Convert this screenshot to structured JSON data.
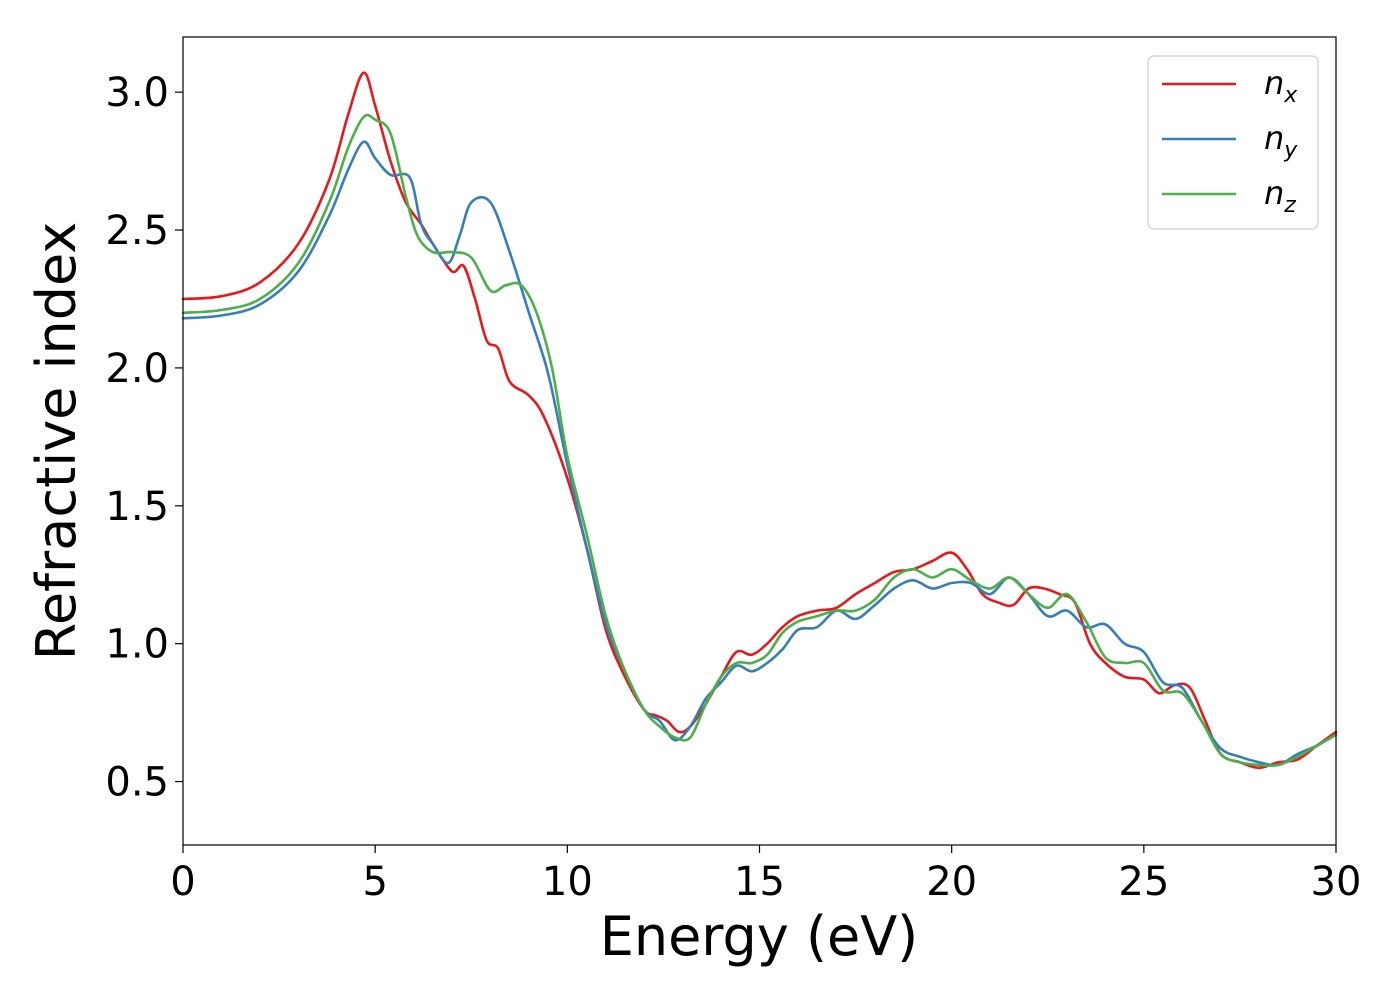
{
  "chart_data": {
    "type": "line",
    "title": "",
    "xlabel": "Energy (eV)",
    "ylabel": "Refractive index",
    "xlim": [
      0,
      30
    ],
    "ylim": [
      0.27,
      3.2
    ],
    "xticks": [
      0,
      5,
      10,
      15,
      20,
      25,
      30
    ],
    "xtick_labels": [
      "0",
      "5",
      "10",
      "15",
      "20",
      "25",
      "30"
    ],
    "yticks": [
      0.5,
      1.0,
      1.5,
      2.0,
      2.5,
      3.0
    ],
    "ytick_labels": [
      "0.5",
      "1.0",
      "1.5",
      "2.0",
      "2.5",
      "3.0"
    ],
    "grid": false,
    "legend_position": "top-right",
    "series": [
      {
        "name": "n",
        "subscript": "x",
        "color": "#e41a1c",
        "points": [
          [
            0,
            2.25
          ],
          [
            1,
            2.26
          ],
          [
            2,
            2.31
          ],
          [
            3,
            2.45
          ],
          [
            3.8,
            2.68
          ],
          [
            4.3,
            2.92
          ],
          [
            4.7,
            3.07
          ],
          [
            5.0,
            2.95
          ],
          [
            5.4,
            2.75
          ],
          [
            5.8,
            2.6
          ],
          [
            6.2,
            2.52
          ],
          [
            6.5,
            2.45
          ],
          [
            7.0,
            2.35
          ],
          [
            7.3,
            2.37
          ],
          [
            7.6,
            2.25
          ],
          [
            7.9,
            2.1
          ],
          [
            8.2,
            2.07
          ],
          [
            8.5,
            1.95
          ],
          [
            9.0,
            1.9
          ],
          [
            9.4,
            1.82
          ],
          [
            10.0,
            1.6
          ],
          [
            10.5,
            1.35
          ],
          [
            11.0,
            1.05
          ],
          [
            11.5,
            0.88
          ],
          [
            12.0,
            0.76
          ],
          [
            12.3,
            0.74
          ],
          [
            12.6,
            0.72
          ],
          [
            12.9,
            0.68
          ],
          [
            13.2,
            0.7
          ],
          [
            13.6,
            0.78
          ],
          [
            14.0,
            0.88
          ],
          [
            14.4,
            0.97
          ],
          [
            14.8,
            0.96
          ],
          [
            15.2,
            1.0
          ],
          [
            15.6,
            1.06
          ],
          [
            16.0,
            1.1
          ],
          [
            16.5,
            1.12
          ],
          [
            17.0,
            1.13
          ],
          [
            17.5,
            1.18
          ],
          [
            18.0,
            1.22
          ],
          [
            18.5,
            1.26
          ],
          [
            19.0,
            1.27
          ],
          [
            19.5,
            1.3
          ],
          [
            20.0,
            1.33
          ],
          [
            20.4,
            1.27
          ],
          [
            20.8,
            1.18
          ],
          [
            21.2,
            1.15
          ],
          [
            21.6,
            1.14
          ],
          [
            22.0,
            1.2
          ],
          [
            22.4,
            1.2
          ],
          [
            22.8,
            1.18
          ],
          [
            23.2,
            1.15
          ],
          [
            23.6,
            1.0
          ],
          [
            24.0,
            0.93
          ],
          [
            24.5,
            0.88
          ],
          [
            25.0,
            0.87
          ],
          [
            25.4,
            0.82
          ],
          [
            25.8,
            0.85
          ],
          [
            26.2,
            0.84
          ],
          [
            26.6,
            0.72
          ],
          [
            27.0,
            0.6
          ],
          [
            27.5,
            0.57
          ],
          [
            28.0,
            0.55
          ],
          [
            28.5,
            0.57
          ],
          [
            29.0,
            0.58
          ],
          [
            29.5,
            0.63
          ],
          [
            30.0,
            0.68
          ]
        ]
      },
      {
        "name": "n",
        "subscript": "y",
        "color": "#377eb8",
        "points": [
          [
            0,
            2.18
          ],
          [
            1,
            2.19
          ],
          [
            2,
            2.23
          ],
          [
            3,
            2.35
          ],
          [
            3.8,
            2.55
          ],
          [
            4.3,
            2.72
          ],
          [
            4.7,
            2.82
          ],
          [
            5.0,
            2.76
          ],
          [
            5.4,
            2.7
          ],
          [
            5.9,
            2.69
          ],
          [
            6.2,
            2.52
          ],
          [
            6.5,
            2.45
          ],
          [
            6.9,
            2.38
          ],
          [
            7.2,
            2.48
          ],
          [
            7.5,
            2.6
          ],
          [
            8.0,
            2.6
          ],
          [
            8.5,
            2.42
          ],
          [
            9.0,
            2.2
          ],
          [
            9.5,
            1.98
          ],
          [
            10.0,
            1.65
          ],
          [
            10.5,
            1.35
          ],
          [
            11.0,
            1.07
          ],
          [
            11.5,
            0.9
          ],
          [
            12.0,
            0.76
          ],
          [
            12.4,
            0.72
          ],
          [
            12.8,
            0.65
          ],
          [
            13.2,
            0.7
          ],
          [
            13.6,
            0.8
          ],
          [
            14.0,
            0.86
          ],
          [
            14.4,
            0.92
          ],
          [
            14.8,
            0.9
          ],
          [
            15.2,
            0.93
          ],
          [
            15.6,
            0.98
          ],
          [
            16.0,
            1.05
          ],
          [
            16.5,
            1.06
          ],
          [
            17.0,
            1.12
          ],
          [
            17.5,
            1.09
          ],
          [
            18.0,
            1.14
          ],
          [
            18.5,
            1.2
          ],
          [
            19.0,
            1.23
          ],
          [
            19.5,
            1.2
          ],
          [
            20.0,
            1.22
          ],
          [
            20.5,
            1.22
          ],
          [
            21.0,
            1.18
          ],
          [
            21.5,
            1.24
          ],
          [
            22.0,
            1.18
          ],
          [
            22.5,
            1.1
          ],
          [
            23.0,
            1.12
          ],
          [
            23.5,
            1.06
          ],
          [
            24.0,
            1.07
          ],
          [
            24.5,
            1.0
          ],
          [
            25.0,
            0.97
          ],
          [
            25.5,
            0.86
          ],
          [
            26.0,
            0.84
          ],
          [
            26.5,
            0.72
          ],
          [
            27.0,
            0.62
          ],
          [
            27.5,
            0.59
          ],
          [
            28.0,
            0.57
          ],
          [
            28.5,
            0.56
          ],
          [
            29.0,
            0.6
          ],
          [
            29.5,
            0.63
          ],
          [
            30.0,
            0.67
          ]
        ]
      },
      {
        "name": "n",
        "subscript": "z",
        "color": "#4daf4a",
        "points": [
          [
            0,
            2.2
          ],
          [
            1,
            2.21
          ],
          [
            2,
            2.25
          ],
          [
            3,
            2.38
          ],
          [
            3.8,
            2.6
          ],
          [
            4.3,
            2.8
          ],
          [
            4.7,
            2.91
          ],
          [
            5.0,
            2.9
          ],
          [
            5.4,
            2.85
          ],
          [
            5.8,
            2.62
          ],
          [
            6.1,
            2.48
          ],
          [
            6.5,
            2.42
          ],
          [
            7.0,
            2.42
          ],
          [
            7.5,
            2.4
          ],
          [
            8.0,
            2.28
          ],
          [
            8.4,
            2.3
          ],
          [
            8.8,
            2.3
          ],
          [
            9.2,
            2.2
          ],
          [
            9.6,
            2.0
          ],
          [
            10.0,
            1.68
          ],
          [
            10.5,
            1.4
          ],
          [
            11.0,
            1.1
          ],
          [
            11.5,
            0.9
          ],
          [
            12.0,
            0.76
          ],
          [
            12.4,
            0.7
          ],
          [
            12.8,
            0.66
          ],
          [
            13.2,
            0.66
          ],
          [
            13.6,
            0.78
          ],
          [
            14.0,
            0.88
          ],
          [
            14.4,
            0.93
          ],
          [
            14.8,
            0.93
          ],
          [
            15.2,
            0.96
          ],
          [
            15.6,
            1.04
          ],
          [
            16.0,
            1.08
          ],
          [
            16.5,
            1.1
          ],
          [
            17.0,
            1.12
          ],
          [
            17.5,
            1.12
          ],
          [
            18.0,
            1.16
          ],
          [
            18.5,
            1.24
          ],
          [
            19.0,
            1.27
          ],
          [
            19.5,
            1.24
          ],
          [
            20.0,
            1.27
          ],
          [
            20.5,
            1.23
          ],
          [
            21.0,
            1.2
          ],
          [
            21.5,
            1.24
          ],
          [
            22.0,
            1.18
          ],
          [
            22.5,
            1.13
          ],
          [
            23.0,
            1.18
          ],
          [
            23.5,
            1.08
          ],
          [
            24.0,
            0.95
          ],
          [
            24.5,
            0.93
          ],
          [
            25.0,
            0.93
          ],
          [
            25.5,
            0.83
          ],
          [
            26.0,
            0.82
          ],
          [
            26.5,
            0.72
          ],
          [
            27.0,
            0.6
          ],
          [
            27.5,
            0.57
          ],
          [
            28.0,
            0.56
          ],
          [
            28.5,
            0.56
          ],
          [
            29.0,
            0.59
          ],
          [
            29.5,
            0.63
          ],
          [
            30.0,
            0.67
          ]
        ]
      }
    ]
  }
}
